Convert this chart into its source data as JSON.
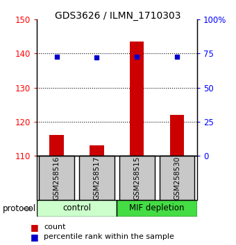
{
  "title": "GDS3626 / ILMN_1710303",
  "samples": [
    "GSM258516",
    "GSM258517",
    "GSM258515",
    "GSM258530"
  ],
  "counts": [
    116.0,
    113.0,
    143.5,
    122.0
  ],
  "percentiles": [
    72.5,
    72.0,
    72.5,
    72.5
  ],
  "bar_baseline": 110,
  "ylim_left": [
    110,
    150
  ],
  "ylim_right": [
    0,
    100
  ],
  "yticks_left": [
    110,
    120,
    130,
    140,
    150
  ],
  "yticks_right": [
    0,
    25,
    50,
    75,
    100
  ],
  "ytick_labels_right": [
    "0",
    "25",
    "50",
    "75",
    "100%"
  ],
  "bar_color": "#cc0000",
  "dot_color": "#0000cc",
  "bar_width": 0.35,
  "sample_box_color": "#c8c8c8",
  "control_color": "#ccffcc",
  "mif_color": "#44dd44",
  "legend_count": "count",
  "legend_percentile": "percentile rank within the sample",
  "protocol_label": "protocol"
}
